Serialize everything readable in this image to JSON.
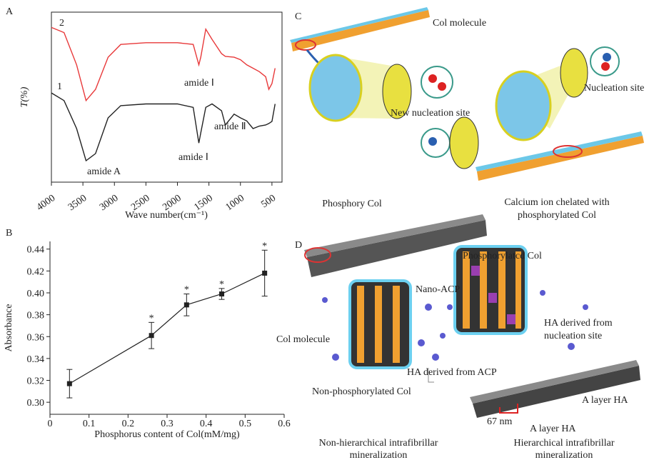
{
  "chart_data": [
    {
      "type": "line",
      "panel": "A",
      "ylabel": "T(%)",
      "xlabel": "Wave number(cm⁻¹)",
      "xlim": [
        4000,
        340
      ],
      "ylim": [
        0,
        100
      ],
      "xticks": [
        4000,
        3500,
        3000,
        2500,
        2000,
        1500,
        1000,
        500
      ],
      "x": [
        4000,
        3800,
        3600,
        3450,
        3300,
        3100,
        2900,
        2500,
        2000,
        1750,
        1660,
        1630,
        1550,
        1450,
        1300,
        1240,
        1100,
        1000,
        900,
        800,
        700,
        600,
        550,
        500,
        450
      ],
      "series": [
        {
          "name": "2",
          "color": "#e8393a",
          "values": [
            91,
            88,
            69,
            48,
            54.6,
            73.5,
            81,
            82,
            82,
            81,
            69,
            73.5,
            90,
            84,
            75.6,
            74,
            73.5,
            72,
            69,
            67,
            65,
            62,
            54.6,
            58,
            67
          ]
        },
        {
          "name": "1",
          "color": "#222222",
          "values": [
            52.5,
            48,
            31.5,
            12.6,
            16.8,
            37.8,
            45,
            46,
            46,
            44,
            23,
            29,
            44,
            46,
            42,
            33.6,
            40,
            37.8,
            36,
            31.5,
            33,
            33.6,
            34.5,
            35.7,
            46
          ]
        }
      ],
      "annotations": [
        "amide Ⅰ",
        "amide Ⅱ",
        "amide A",
        "amide Ⅰ"
      ]
    },
    {
      "type": "line",
      "panel": "B",
      "ylabel": "Absorbance",
      "xlabel": "Phosphorus content of Col(mM/mg)",
      "xlim": [
        0,
        0.6
      ],
      "ylim": [
        0.289,
        0.447
      ],
      "xticks": [
        0,
        0.1,
        0.2,
        0.3,
        0.4,
        0.5,
        0.6
      ],
      "yticks": [
        {
          "value": 0.3,
          "label": "0.30"
        },
        0.32,
        0.34,
        0.36,
        0.38,
        {
          "value": 0.4,
          "label": "0.40"
        },
        0.42,
        0.44
      ],
      "x": [
        0.05,
        0.26,
        0.35,
        0.44,
        0.55
      ],
      "values": [
        0.317,
        0.361,
        0.389,
        0.399,
        0.418
      ],
      "errors": [
        0.013,
        0.012,
        0.01,
        0.005,
        0.021
      ],
      "significance": [
        null,
        "*",
        "*",
        "*",
        "*"
      ],
      "color": "#222222"
    }
  ],
  "panel_c": {
    "label": "C",
    "col_molecule": "Col molecule",
    "new_nucleation_site": "New nucleation site",
    "nucleation_site": "Nucleation site",
    "phosphory_col": "Phosphory Col",
    "calcium_caption": [
      "Calcium ion chelated with",
      "phosphorylated Col"
    ]
  },
  "panel_d": {
    "label": "D",
    "phosphorylated_col": "Phosphorylatcd Col",
    "nano_acp": "Nano-ACP",
    "ha_nucleation": [
      "HA derived from",
      "nucleation site"
    ],
    "col_molecule": "Col molecule",
    "ha_acp": "HA derived from ACP",
    "non_phosphorylated_col": "Non-phosphorylated Col",
    "length": "67 nm",
    "layer_ha_1": "A layer HA",
    "layer_ha_2": "A layer HA",
    "non_hierarchical_caption": [
      "Non-hierarchical intrafibrillar",
      "mineralization"
    ],
    "hierarchical_caption": [
      "Hierarchical intrafibrillar",
      "mineralization"
    ]
  }
}
